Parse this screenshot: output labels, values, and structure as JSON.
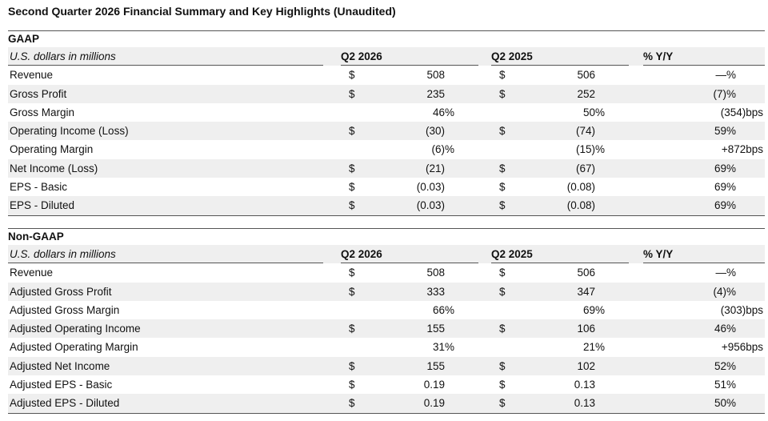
{
  "title": "Second Quarter 2026 Financial Summary and Key Highlights (Unaudited)",
  "gaap": {
    "heading": "GAAP",
    "columns": {
      "label": "U.S. dollars in millions",
      "q1": "Q2 2026",
      "q2": "Q2 2025",
      "yy": "% Y/Y"
    },
    "rows": [
      {
        "label": "Revenue",
        "d1": "$",
        "v1": "508",
        "d2": "$",
        "v2": "506",
        "yy": "—%"
      },
      {
        "label": "Gross Profit",
        "d1": "$",
        "v1": "235",
        "d2": "$",
        "v2": "252",
        "yy": "(7)%"
      },
      {
        "label": "Gross Margin",
        "d1": "",
        "v1": "46%",
        "d2": "",
        "v2": "50%",
        "yy": "(354)bps"
      },
      {
        "label": "Operating Income (Loss)",
        "d1": "$",
        "v1": "(30)",
        "d2": "$",
        "v2": "(74)",
        "yy": "59%"
      },
      {
        "label": "Operating Margin",
        "d1": "",
        "v1": "(6)%",
        "d2": "",
        "v2": "(15)%",
        "yy": "+872bps"
      },
      {
        "label": "Net Income (Loss)",
        "d1": "$",
        "v1": "(21)",
        "d2": "$",
        "v2": "(67)",
        "yy": "69%"
      },
      {
        "label": "EPS - Basic",
        "d1": "$",
        "v1": "(0.03)",
        "d2": "$",
        "v2": "(0.08)",
        "yy": "69%"
      },
      {
        "label": "EPS - Diluted",
        "d1": "$",
        "v1": "(0.03)",
        "d2": "$",
        "v2": "(0.08)",
        "yy": "69%"
      }
    ]
  },
  "nongaap": {
    "heading": "Non-GAAP",
    "columns": {
      "label": "U.S. dollars in millions",
      "q1": "Q2 2026",
      "q2": "Q2 2025",
      "yy": "% Y/Y"
    },
    "rows": [
      {
        "label": "Revenue",
        "d1": "$",
        "v1": "508",
        "d2": "$",
        "v2": "506",
        "yy": "—%"
      },
      {
        "label": "Adjusted Gross Profit",
        "d1": "$",
        "v1": "333",
        "d2": "$",
        "v2": "347",
        "yy": "(4)%"
      },
      {
        "label": "Adjusted Gross Margin",
        "d1": "",
        "v1": "66%",
        "d2": "",
        "v2": "69%",
        "yy": "(303)bps"
      },
      {
        "label": "Adjusted Operating Income",
        "d1": "$",
        "v1": "155",
        "d2": "$",
        "v2": "106",
        "yy": "46%"
      },
      {
        "label": "Adjusted Operating Margin",
        "d1": "",
        "v1": "31%",
        "d2": "",
        "v2": "21%",
        "yy": "+956bps"
      },
      {
        "label": "Adjusted Net Income",
        "d1": "$",
        "v1": "155",
        "d2": "$",
        "v2": "102",
        "yy": "52%"
      },
      {
        "label": "Adjusted EPS - Basic",
        "d1": "$",
        "v1": "0.19",
        "d2": "$",
        "v2": "0.13",
        "yy": "51%"
      },
      {
        "label": "Adjusted EPS - Diluted",
        "d1": "$",
        "v1": "0.19",
        "d2": "$",
        "v2": "0.13",
        "yy": "50%"
      }
    ]
  },
  "colors": {
    "shade": "#efefef",
    "rule": "#555555",
    "text": "#111111"
  }
}
